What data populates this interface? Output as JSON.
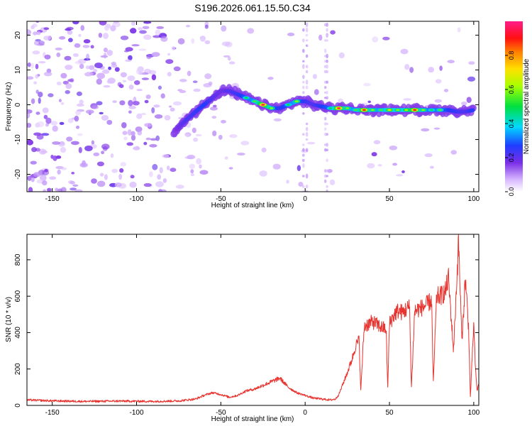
{
  "title": "S196.2026.061.15.50.C34",
  "colors": {
    "axis": "#000000",
    "snr_line": "#e8332e",
    "noise_dots": "#7a2ee6",
    "background": "#ffffff"
  },
  "chart_data": [
    {
      "type": "heatmap",
      "name": "spectrogram",
      "xlabel": "Height of straight line (km)",
      "ylabel": "Frequency (Hz)",
      "xlim": [
        -165,
        103
      ],
      "ylim": [
        -25,
        24
      ],
      "xticks": [
        -150,
        -100,
        -50,
        0,
        50,
        100
      ],
      "xtick_labels": [
        "-150",
        "-100",
        "-50",
        "0",
        "50",
        "100"
      ],
      "yticks": [
        -20,
        -10,
        0,
        10,
        20
      ],
      "ytick_labels": [
        "-20",
        "-10",
        "0",
        "10",
        "20"
      ],
      "ridge": {
        "x": [
          -78,
          -72,
          -65,
          -60,
          -55,
          -50,
          -45,
          -40,
          -35,
          -30,
          -25,
          -20,
          -15,
          -10,
          -5,
          0,
          5,
          10,
          15,
          20,
          25,
          30,
          35,
          40,
          45,
          50,
          55,
          60,
          65,
          70,
          75,
          80,
          85,
          90,
          95,
          100
        ],
        "freq": [
          -8,
          -5,
          -2,
          0,
          2,
          4,
          4,
          3,
          2,
          1,
          0,
          -1,
          -1,
          0,
          1,
          1,
          0,
          -0.5,
          -1,
          -1,
          -1,
          -1.5,
          -1.5,
          -1.5,
          -1.5,
          -1.5,
          -1.5,
          -1.5,
          -1.5,
          -1.5,
          -1.5,
          -1.5,
          -1.5,
          -2,
          -2,
          -1.5
        ],
        "amplitude": [
          0.25,
          0.35,
          0.4,
          0.45,
          0.35,
          0.3,
          0.35,
          0.4,
          0.5,
          0.55,
          0.95,
          0.6,
          0.4,
          0.5,
          0.6,
          0.4,
          0.35,
          0.45,
          0.5,
          0.95,
          0.6,
          0.55,
          0.9,
          0.6,
          0.55,
          0.7,
          0.6,
          0.65,
          0.9,
          0.6,
          0.5,
          0.55,
          0.45,
          0.4,
          0.35,
          0.45
        ]
      },
      "colorbar": {
        "label": "Normalized spectral amplitude",
        "range": [
          0,
          1
        ],
        "ticks": [
          0.0,
          0.2,
          0.4,
          0.6,
          0.8
        ],
        "tick_labels": [
          "0.0",
          "0.2",
          "0.4",
          "0.6",
          "0.8"
        ],
        "colormap": "rainbow (white-purple-blue-cyan-green-yellow-red-magenta)"
      }
    },
    {
      "type": "line",
      "name": "snr",
      "xlabel": "Height of straight line (km)",
      "ylabel": "SNR (10 * v/v)",
      "xlim": [
        -165,
        103
      ],
      "ylim": [
        0,
        940
      ],
      "xticks": [
        -150,
        -100,
        -50,
        0,
        50,
        100
      ],
      "xtick_labels": [
        "-150",
        "-100",
        "-50",
        "0",
        "50",
        "100"
      ],
      "yticks": [
        0,
        200,
        400,
        600,
        800
      ],
      "ytick_labels": [
        "0",
        "200",
        "400",
        "600",
        "800"
      ],
      "x": [
        -165,
        -150,
        -130,
        -110,
        -90,
        -75,
        -65,
        -60,
        -55,
        -50,
        -45,
        -40,
        -35,
        -30,
        -25,
        -20,
        -15,
        -10,
        -5,
        0,
        5,
        10,
        15,
        18,
        20,
        25,
        28,
        30,
        32,
        33,
        35,
        36,
        38,
        40,
        45,
        48,
        49,
        50,
        53,
        55,
        58,
        60,
        62,
        63,
        65,
        70,
        73,
        75,
        76,
        78,
        80,
        83,
        85,
        88,
        90,
        91,
        93,
        95,
        97,
        98,
        100,
        101,
        102,
        103
      ],
      "y": [
        30,
        25,
        22,
        24,
        22,
        25,
        35,
        55,
        70,
        60,
        45,
        55,
        80,
        90,
        110,
        130,
        150,
        100,
        70,
        55,
        40,
        35,
        30,
        35,
        60,
        180,
        260,
        330,
        360,
        80,
        430,
        440,
        450,
        460,
        430,
        420,
        90,
        450,
        500,
        520,
        510,
        530,
        540,
        90,
        520,
        540,
        560,
        580,
        120,
        600,
        600,
        620,
        700,
        300,
        700,
        900,
        350,
        700,
        420,
        40,
        450,
        200,
        80,
        120
      ]
    }
  ]
}
